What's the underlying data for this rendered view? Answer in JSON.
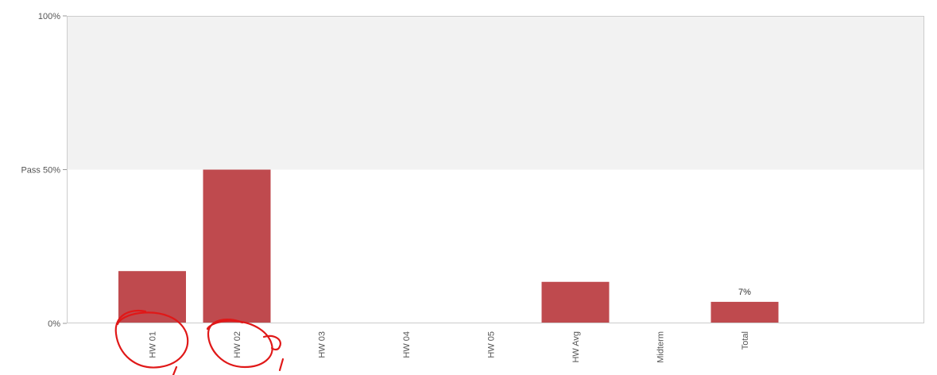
{
  "chart_data": {
    "type": "bar",
    "categories": [
      "HW 01",
      "HW 02",
      "HW 03",
      "HW 04",
      "HW 05",
      "HW Avg",
      "Midterm",
      "Total"
    ],
    "values": [
      17,
      50,
      0,
      0,
      0,
      13.5,
      0,
      7
    ],
    "data_labels": [
      "",
      "",
      "",
      "",
      "",
      "",
      "",
      "7%"
    ],
    "y_ticks": [
      {
        "value": 0,
        "label": "0%"
      },
      {
        "value": 50,
        "label": "Pass 50%"
      },
      {
        "value": 100,
        "label": "100%"
      }
    ],
    "ylim": [
      0,
      100
    ],
    "pass_threshold": 50,
    "grid": false,
    "legend": "none",
    "bar_color": "#bf4a4e",
    "pass_band_color": "#f2f2f2",
    "annotation_color": "#e01818"
  }
}
